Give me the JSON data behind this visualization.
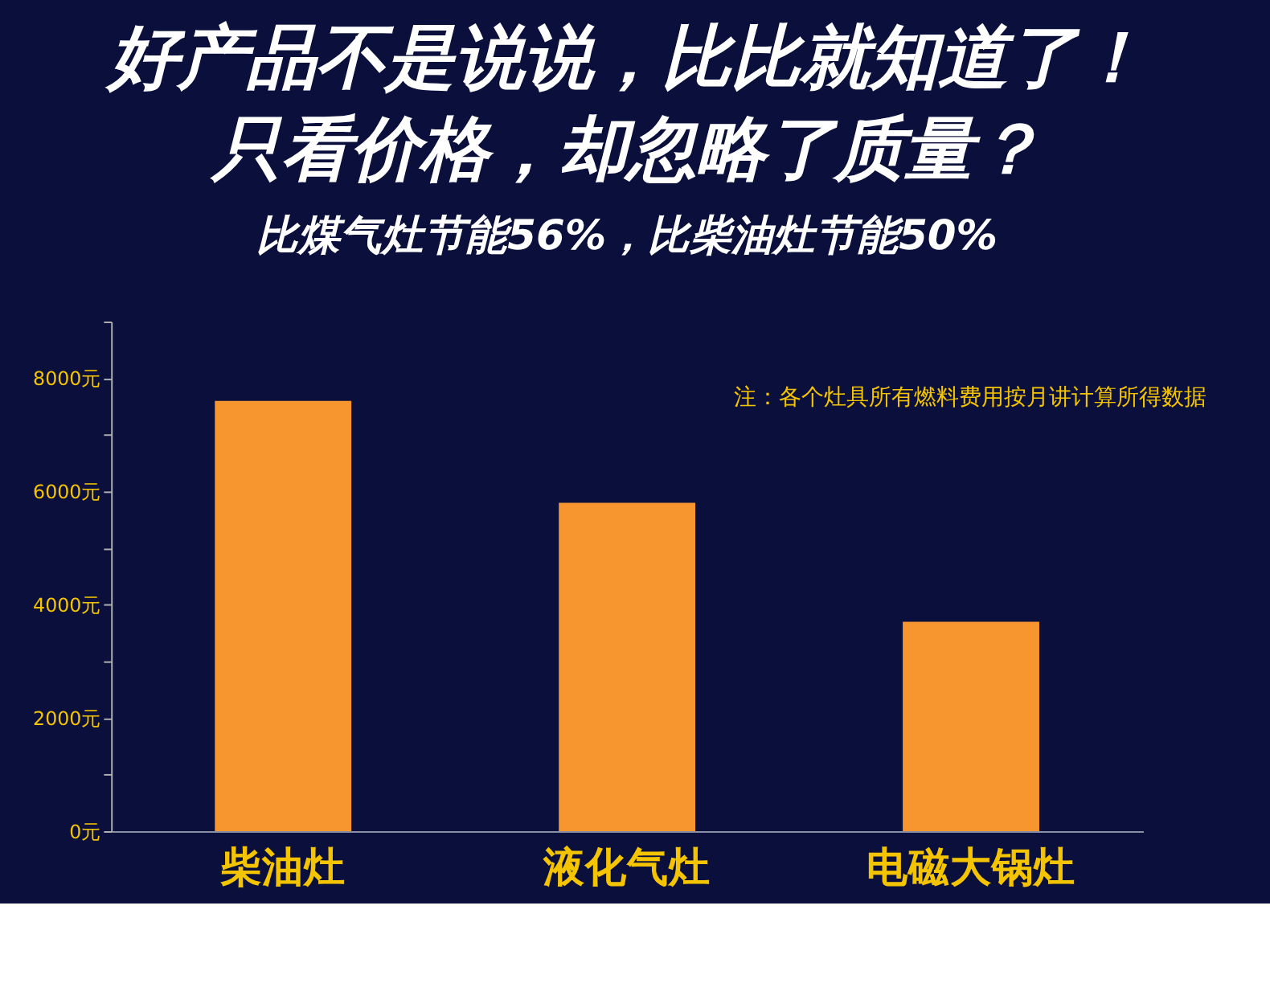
{
  "chart_data": {
    "type": "bar",
    "title": [
      "好产品不是说说，比比就知道了！",
      "只看价格，却忽略了质量？"
    ],
    "subtitle": "比煤气灶节能56%，比柴油灶节能50%",
    "annotations": [
      "注：各个灶具所有燃料费用按月讲计算所得数据"
    ],
    "categories": [
      "柴油灶",
      "液化气灶",
      "电磁大锅灶"
    ],
    "values": [
      7600,
      5800,
      3700
    ],
    "color": "#f7962f",
    "ylim": [
      0,
      9000
    ],
    "yticks": [
      {
        "value": 0,
        "label": "0元"
      },
      {
        "value": 1000,
        "label": null
      },
      {
        "value": 2000,
        "label": "2000元"
      },
      {
        "value": 3000,
        "label": null
      },
      {
        "value": 4000,
        "label": "4000元"
      },
      {
        "value": 5000,
        "label": null
      },
      {
        "value": 6000,
        "label": "6000元"
      },
      {
        "value": 7000,
        "label": null
      },
      {
        "value": 8000,
        "label": "8000元"
      },
      {
        "value": 9000,
        "label": null
      }
    ],
    "grid": false
  }
}
